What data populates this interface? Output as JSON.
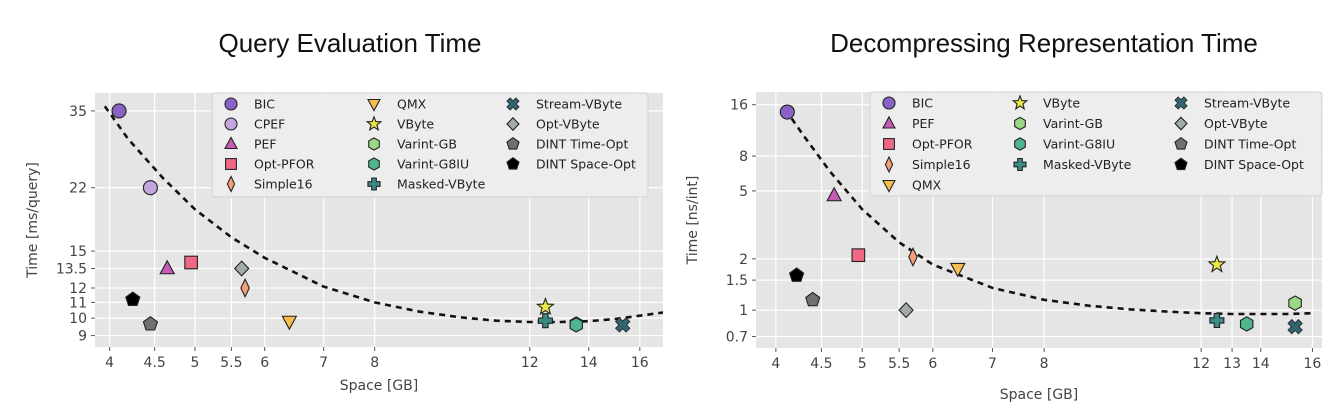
{
  "figure": {
    "colors": {
      "plot_background": "#e5e5e5",
      "grid": "#ffffff",
      "legend_background": "#eeeeee",
      "trend_line": "#111111",
      "BIC": "#8a62c6",
      "CPEF": "#c3a6dd",
      "PEF": "#c75bb8",
      "Opt-PFOR": "#f06883",
      "Simple16": "#f6a07a",
      "QMX": "#f7bd4f",
      "VByte": "#eaea45",
      "Varint-GB": "#9ad984",
      "Varint-G8IU": "#4eb58d",
      "Masked-VByte": "#3a8b86",
      "Stream-VByte": "#32656f",
      "Opt-VByte": "#a2aba9",
      "DINT Time-Opt": "#707070",
      "DINT Space-Opt": "#000000"
    }
  },
  "chart_data": [
    {
      "type": "scatter",
      "title": "Query Evaluation Time",
      "xlabel": "Space [GB]",
      "ylabel": "Time [ms/query]",
      "x_scale": "log",
      "y_scale": "log",
      "xlim": [
        3.85,
        17.0
      ],
      "ylim": [
        8.4,
        39.0
      ],
      "xticks": [
        4,
        4.5,
        5,
        5.5,
        6,
        7,
        8,
        12,
        14,
        16
      ],
      "xtick_labels": [
        "4",
        "4.5",
        "5",
        "5.5",
        "6",
        "7",
        "8",
        "12",
        "14",
        "16"
      ],
      "yticks": [
        9,
        10,
        11,
        12,
        13.5,
        15,
        22,
        35
      ],
      "ytick_labels": [
        "9",
        "10",
        "11",
        "12",
        "13.5",
        "15",
        "22",
        "35"
      ],
      "grid": true,
      "legend_placement": "top-right",
      "legend_columns": [
        [
          "BIC",
          "CPEF",
          "PEF",
          "Opt-PFOR",
          "Simple16"
        ],
        [
          "QMX",
          "VByte",
          "Varint-GB",
          "Varint-G8IU",
          "Masked-VByte"
        ],
        [
          "Stream-VByte",
          "Opt-VByte",
          "DINT Time-Opt",
          "DINT Space-Opt"
        ]
      ],
      "trend": [
        [
          3.95,
          36.0
        ],
        [
          4.2,
          29.5
        ],
        [
          4.6,
          23.3
        ],
        [
          5.0,
          19.3
        ],
        [
          5.5,
          16.3
        ],
        [
          6.0,
          14.4
        ],
        [
          7.0,
          12.1
        ],
        [
          8.0,
          11.0
        ],
        [
          9.0,
          10.4
        ],
        [
          10.0,
          10.05
        ],
        [
          11.0,
          9.85
        ],
        [
          12.0,
          9.77
        ],
        [
          13.0,
          9.77
        ],
        [
          14.0,
          9.82
        ],
        [
          15.0,
          9.95
        ],
        [
          16.0,
          10.15
        ],
        [
          17.0,
          10.35
        ]
      ],
      "series": [
        {
          "name": "BIC",
          "marker": "circle",
          "x": 4.1,
          "y": 35.0
        },
        {
          "name": "CPEF",
          "marker": "circle",
          "x": 4.45,
          "y": 22.0
        },
        {
          "name": "PEF",
          "marker": "triangle-up",
          "x": 4.65,
          "y": 13.5
        },
        {
          "name": "Opt-PFOR",
          "marker": "square",
          "x": 4.95,
          "y": 14.0
        },
        {
          "name": "Simple16",
          "marker": "diamond-thin",
          "x": 5.7,
          "y": 12.0
        },
        {
          "name": "QMX",
          "marker": "triangle-down",
          "x": 6.4,
          "y": 9.8
        },
        {
          "name": "VByte",
          "marker": "star",
          "x": 12.5,
          "y": 10.7
        },
        {
          "name": "Varint-GB",
          "marker": "hexagon",
          "x": 13.55,
          "y": 9.65
        },
        {
          "name": "Varint-G8IU",
          "marker": "hexagon",
          "x": 13.55,
          "y": 9.6
        },
        {
          "name": "Masked-VByte",
          "marker": "plus",
          "x": 12.5,
          "y": 9.85
        },
        {
          "name": "Stream-VByte",
          "marker": "x",
          "x": 15.3,
          "y": 9.6
        },
        {
          "name": "Opt-VByte",
          "marker": "diamond",
          "x": 5.65,
          "y": 13.5
        },
        {
          "name": "DINT Time-Opt",
          "marker": "pentagon",
          "x": 4.45,
          "y": 9.65
        },
        {
          "name": "DINT Space-Opt",
          "marker": "pentagon",
          "x": 4.25,
          "y": 11.2
        }
      ]
    },
    {
      "type": "scatter",
      "title": "Decompressing Representation Time",
      "xlabel": "Space [GB]",
      "ylabel": "Time [ns/int]",
      "x_scale": "log",
      "y_scale": "log",
      "xlim": [
        3.8,
        16.4
      ],
      "ylim": [
        0.6,
        19.0
      ],
      "xticks": [
        4,
        4.5,
        5,
        5.5,
        6,
        7,
        8,
        12,
        13,
        14,
        16
      ],
      "xtick_labels": [
        "4",
        "4.5",
        "5",
        "5.5",
        "6",
        "7",
        "8",
        "12",
        "13",
        "14",
        "16"
      ],
      "yticks": [
        0.7,
        1,
        1.5,
        2,
        5,
        8,
        16
      ],
      "ytick_labels": [
        "0.7",
        "1",
        "1.5",
        "2",
        "5",
        "8",
        "16"
      ],
      "grid": true,
      "legend_placement": "top-right",
      "legend_columns": [
        [
          "BIC",
          "PEF",
          "Opt-PFOR",
          "Simple16",
          "QMX"
        ],
        [
          "VByte",
          "Varint-GB",
          "Varint-G8IU",
          "Masked-VByte"
        ],
        [
          "Stream-VByte",
          "Opt-VByte",
          "DINT Time-Opt",
          "DINT Space-Opt"
        ]
      ],
      "trend": [
        [
          4.1,
          15.0
        ],
        [
          4.3,
          10.5
        ],
        [
          4.6,
          6.5
        ],
        [
          5.0,
          3.9
        ],
        [
          5.5,
          2.5
        ],
        [
          6.0,
          1.85
        ],
        [
          7.0,
          1.35
        ],
        [
          8.0,
          1.15
        ],
        [
          9.0,
          1.06
        ],
        [
          10.0,
          1.01
        ],
        [
          11.0,
          0.98
        ],
        [
          12.0,
          0.96
        ],
        [
          13.0,
          0.95
        ],
        [
          14.0,
          0.95
        ],
        [
          15.0,
          0.95
        ],
        [
          16.0,
          0.96
        ]
      ],
      "series": [
        {
          "name": "BIC",
          "marker": "circle",
          "x": 4.12,
          "y": 14.5
        },
        {
          "name": "PEF",
          "marker": "triangle-up",
          "x": 4.65,
          "y": 4.7
        },
        {
          "name": "Opt-PFOR",
          "marker": "square",
          "x": 4.95,
          "y": 2.1
        },
        {
          "name": "Simple16",
          "marker": "diamond-thin",
          "x": 5.7,
          "y": 2.05
        },
        {
          "name": "QMX",
          "marker": "triangle-down",
          "x": 6.4,
          "y": 1.75
        },
        {
          "name": "VByte",
          "marker": "star",
          "x": 12.5,
          "y": 1.85
        },
        {
          "name": "Varint-GB",
          "marker": "hexagon",
          "x": 15.3,
          "y": 1.1
        },
        {
          "name": "Varint-G8IU",
          "marker": "hexagon",
          "x": 13.5,
          "y": 0.83
        },
        {
          "name": "Masked-VByte",
          "marker": "plus",
          "x": 12.5,
          "y": 0.87
        },
        {
          "name": "Stream-VByte",
          "marker": "x",
          "x": 15.3,
          "y": 0.8
        },
        {
          "name": "Opt-VByte",
          "marker": "diamond",
          "x": 5.6,
          "y": 1.0
        },
        {
          "name": "DINT Time-Opt",
          "marker": "pentagon",
          "x": 4.4,
          "y": 1.15
        },
        {
          "name": "DINT Space-Opt",
          "marker": "pentagon",
          "x": 4.22,
          "y": 1.6
        }
      ]
    }
  ]
}
